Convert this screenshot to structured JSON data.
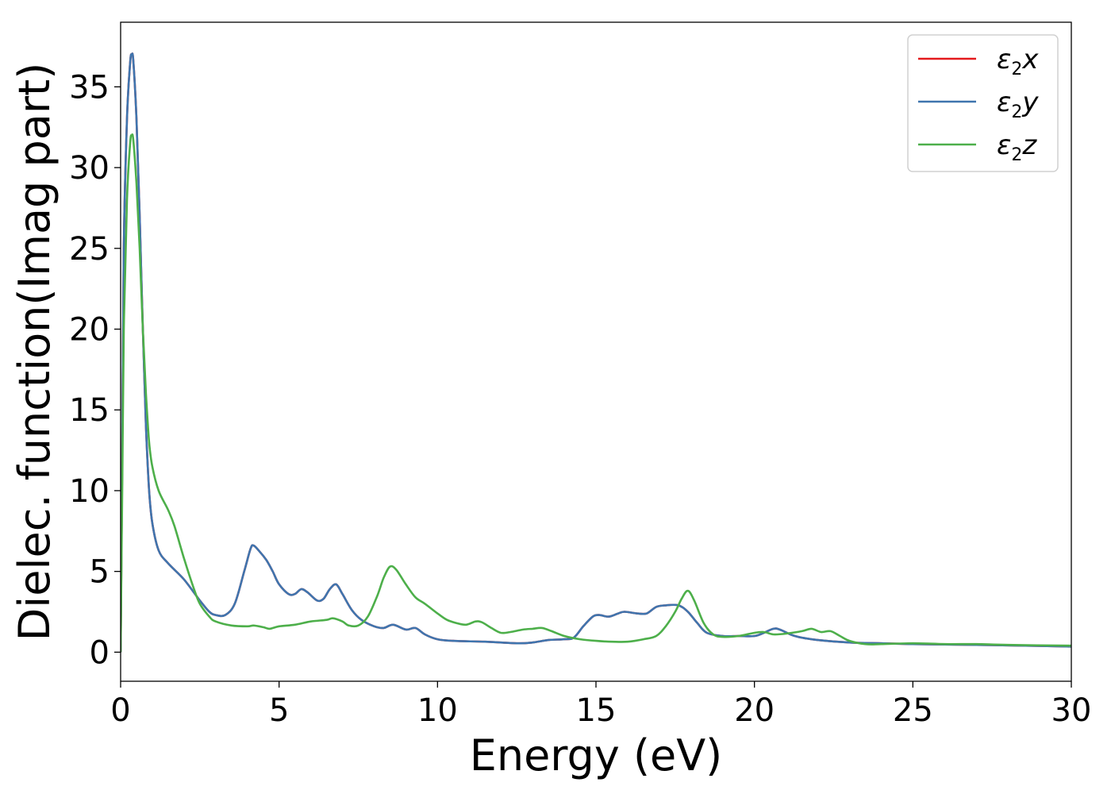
{
  "chart_data": {
    "type": "line",
    "xlabel": "Energy (eV)",
    "ylabel": "Dielec. function(Imag part)",
    "xlim": [
      0,
      30
    ],
    "ylim": [
      -1.8,
      39
    ],
    "xticks": [
      0,
      5,
      10,
      15,
      20,
      25,
      30
    ],
    "yticks": [
      0,
      5,
      10,
      15,
      20,
      25,
      30,
      35
    ],
    "grid": false,
    "legend_position": "top-right",
    "series": [
      {
        "name": "x",
        "legend_symbol": "ε",
        "legend_subscript": "2",
        "color": "#e41a1c",
        "points": [
          [
            0,
            0
          ],
          [
            0.05,
            12
          ],
          [
            0.1,
            25
          ],
          [
            0.2,
            33
          ],
          [
            0.3,
            36.5
          ],
          [
            0.35,
            37
          ],
          [
            0.4,
            36.6
          ],
          [
            0.5,
            33
          ],
          [
            0.6,
            27
          ],
          [
            0.7,
            20
          ],
          [
            0.8,
            14
          ],
          [
            0.9,
            10
          ],
          [
            1.0,
            8
          ],
          [
            1.2,
            6.3
          ],
          [
            1.5,
            5.5
          ],
          [
            2.0,
            4.5
          ],
          [
            2.5,
            3.2
          ],
          [
            2.8,
            2.5
          ],
          [
            3.0,
            2.3
          ],
          [
            3.3,
            2.3
          ],
          [
            3.6,
            3.0
          ],
          [
            3.9,
            5.0
          ],
          [
            4.1,
            6.4
          ],
          [
            4.2,
            6.6
          ],
          [
            4.4,
            6.2
          ],
          [
            4.6,
            5.7
          ],
          [
            4.8,
            5.0
          ],
          [
            5.0,
            4.2
          ],
          [
            5.3,
            3.6
          ],
          [
            5.5,
            3.6
          ],
          [
            5.7,
            3.9
          ],
          [
            5.9,
            3.7
          ],
          [
            6.2,
            3.2
          ],
          [
            6.4,
            3.3
          ],
          [
            6.6,
            3.9
          ],
          [
            6.8,
            4.2
          ],
          [
            7.0,
            3.6
          ],
          [
            7.3,
            2.6
          ],
          [
            7.6,
            2.0
          ],
          [
            8.0,
            1.6
          ],
          [
            8.3,
            1.5
          ],
          [
            8.6,
            1.7
          ],
          [
            9.0,
            1.4
          ],
          [
            9.3,
            1.5
          ],
          [
            9.6,
            1.1
          ],
          [
            10.0,
            0.8
          ],
          [
            10.5,
            0.7
          ],
          [
            11.5,
            0.65
          ],
          [
            12.5,
            0.55
          ],
          [
            13.0,
            0.6
          ],
          [
            13.5,
            0.75
          ],
          [
            14.0,
            0.8
          ],
          [
            14.3,
            0.9
          ],
          [
            14.6,
            1.6
          ],
          [
            14.9,
            2.2
          ],
          [
            15.1,
            2.3
          ],
          [
            15.4,
            2.2
          ],
          [
            15.7,
            2.4
          ],
          [
            15.9,
            2.5
          ],
          [
            16.3,
            2.4
          ],
          [
            16.6,
            2.4
          ],
          [
            16.9,
            2.8
          ],
          [
            17.2,
            2.9
          ],
          [
            17.6,
            2.9
          ],
          [
            17.9,
            2.5
          ],
          [
            18.2,
            1.8
          ],
          [
            18.5,
            1.2
          ],
          [
            19.0,
            1.0
          ],
          [
            19.5,
            1.0
          ],
          [
            20.0,
            1.0
          ],
          [
            20.3,
            1.2
          ],
          [
            20.6,
            1.45
          ],
          [
            20.8,
            1.4
          ],
          [
            21.2,
            1.05
          ],
          [
            21.5,
            0.9
          ],
          [
            22.0,
            0.75
          ],
          [
            23.0,
            0.6
          ],
          [
            24.0,
            0.55
          ],
          [
            25.0,
            0.5
          ],
          [
            27.0,
            0.45
          ],
          [
            28.0,
            0.42
          ],
          [
            30.0,
            0.35
          ]
        ]
      },
      {
        "name": "y",
        "legend_symbol": "ε",
        "legend_subscript": "2",
        "color": "#3f75ae",
        "points": [
          [
            0,
            0
          ],
          [
            0.05,
            12
          ],
          [
            0.1,
            25
          ],
          [
            0.2,
            33
          ],
          [
            0.3,
            36.5
          ],
          [
            0.35,
            37
          ],
          [
            0.4,
            36.6
          ],
          [
            0.5,
            33
          ],
          [
            0.6,
            27
          ],
          [
            0.7,
            20
          ],
          [
            0.8,
            14
          ],
          [
            0.9,
            10
          ],
          [
            1.0,
            8
          ],
          [
            1.2,
            6.3
          ],
          [
            1.5,
            5.5
          ],
          [
            2.0,
            4.5
          ],
          [
            2.5,
            3.2
          ],
          [
            2.8,
            2.5
          ],
          [
            3.0,
            2.3
          ],
          [
            3.3,
            2.3
          ],
          [
            3.6,
            3.0
          ],
          [
            3.9,
            5.0
          ],
          [
            4.1,
            6.4
          ],
          [
            4.2,
            6.6
          ],
          [
            4.4,
            6.2
          ],
          [
            4.6,
            5.7
          ],
          [
            4.8,
            5.0
          ],
          [
            5.0,
            4.2
          ],
          [
            5.3,
            3.6
          ],
          [
            5.5,
            3.6
          ],
          [
            5.7,
            3.9
          ],
          [
            5.9,
            3.7
          ],
          [
            6.2,
            3.2
          ],
          [
            6.4,
            3.3
          ],
          [
            6.6,
            3.9
          ],
          [
            6.8,
            4.2
          ],
          [
            7.0,
            3.6
          ],
          [
            7.3,
            2.6
          ],
          [
            7.6,
            2.0
          ],
          [
            8.0,
            1.6
          ],
          [
            8.3,
            1.5
          ],
          [
            8.6,
            1.7
          ],
          [
            9.0,
            1.4
          ],
          [
            9.3,
            1.5
          ],
          [
            9.6,
            1.1
          ],
          [
            10.0,
            0.8
          ],
          [
            10.5,
            0.7
          ],
          [
            11.5,
            0.65
          ],
          [
            12.5,
            0.55
          ],
          [
            13.0,
            0.6
          ],
          [
            13.5,
            0.75
          ],
          [
            14.0,
            0.8
          ],
          [
            14.3,
            0.9
          ],
          [
            14.6,
            1.6
          ],
          [
            14.9,
            2.2
          ],
          [
            15.1,
            2.3
          ],
          [
            15.4,
            2.2
          ],
          [
            15.7,
            2.4
          ],
          [
            15.9,
            2.5
          ],
          [
            16.3,
            2.4
          ],
          [
            16.6,
            2.4
          ],
          [
            16.9,
            2.8
          ],
          [
            17.2,
            2.9
          ],
          [
            17.6,
            2.9
          ],
          [
            17.9,
            2.5
          ],
          [
            18.2,
            1.8
          ],
          [
            18.5,
            1.2
          ],
          [
            19.0,
            1.0
          ],
          [
            19.5,
            1.0
          ],
          [
            20.0,
            1.0
          ],
          [
            20.3,
            1.2
          ],
          [
            20.6,
            1.45
          ],
          [
            20.8,
            1.4
          ],
          [
            21.2,
            1.05
          ],
          [
            21.5,
            0.9
          ],
          [
            22.0,
            0.75
          ],
          [
            23.0,
            0.6
          ],
          [
            24.0,
            0.55
          ],
          [
            25.0,
            0.5
          ],
          [
            27.0,
            0.45
          ],
          [
            28.0,
            0.42
          ],
          [
            30.0,
            0.35
          ]
        ]
      },
      {
        "name": "z",
        "legend_symbol": "ε",
        "legend_subscript": "2",
        "color": "#4daf4a",
        "points": [
          [
            0,
            0
          ],
          [
            0.05,
            10
          ],
          [
            0.1,
            20
          ],
          [
            0.2,
            28
          ],
          [
            0.3,
            31.5
          ],
          [
            0.35,
            32
          ],
          [
            0.4,
            31.7
          ],
          [
            0.5,
            29
          ],
          [
            0.6,
            25
          ],
          [
            0.7,
            20
          ],
          [
            0.8,
            16
          ],
          [
            0.9,
            13
          ],
          [
            1.0,
            11.5
          ],
          [
            1.2,
            10
          ],
          [
            1.5,
            8.8
          ],
          [
            1.7,
            7.8
          ],
          [
            2.0,
            5.8
          ],
          [
            2.3,
            4.0
          ],
          [
            2.5,
            3.0
          ],
          [
            2.8,
            2.2
          ],
          [
            3.0,
            1.9
          ],
          [
            3.5,
            1.65
          ],
          [
            4.0,
            1.6
          ],
          [
            4.2,
            1.65
          ],
          [
            4.5,
            1.55
          ],
          [
            4.7,
            1.45
          ],
          [
            5.0,
            1.6
          ],
          [
            5.5,
            1.7
          ],
          [
            6.0,
            1.9
          ],
          [
            6.5,
            2.0
          ],
          [
            6.7,
            2.1
          ],
          [
            7.0,
            1.9
          ],
          [
            7.2,
            1.65
          ],
          [
            7.5,
            1.65
          ],
          [
            7.8,
            2.2
          ],
          [
            8.1,
            3.5
          ],
          [
            8.3,
            4.6
          ],
          [
            8.5,
            5.3
          ],
          [
            8.7,
            5.1
          ],
          [
            9.0,
            4.2
          ],
          [
            9.3,
            3.4
          ],
          [
            9.6,
            3.0
          ],
          [
            10.0,
            2.4
          ],
          [
            10.3,
            2.0
          ],
          [
            10.6,
            1.8
          ],
          [
            10.9,
            1.7
          ],
          [
            11.2,
            1.9
          ],
          [
            11.4,
            1.85
          ],
          [
            11.7,
            1.5
          ],
          [
            12.0,
            1.2
          ],
          [
            12.3,
            1.25
          ],
          [
            12.7,
            1.4
          ],
          [
            13.0,
            1.45
          ],
          [
            13.3,
            1.5
          ],
          [
            13.6,
            1.3
          ],
          [
            14.0,
            1.0
          ],
          [
            14.5,
            0.8
          ],
          [
            15.0,
            0.7
          ],
          [
            15.5,
            0.65
          ],
          [
            16.0,
            0.65
          ],
          [
            16.5,
            0.8
          ],
          [
            16.9,
            1.0
          ],
          [
            17.2,
            1.6
          ],
          [
            17.5,
            2.5
          ],
          [
            17.7,
            3.3
          ],
          [
            17.9,
            3.8
          ],
          [
            18.1,
            3.2
          ],
          [
            18.4,
            1.8
          ],
          [
            18.7,
            1.1
          ],
          [
            19.0,
            0.95
          ],
          [
            19.5,
            1.0
          ],
          [
            20.0,
            1.2
          ],
          [
            20.3,
            1.25
          ],
          [
            20.6,
            1.1
          ],
          [
            21.0,
            1.15
          ],
          [
            21.5,
            1.3
          ],
          [
            21.8,
            1.45
          ],
          [
            22.1,
            1.25
          ],
          [
            22.4,
            1.3
          ],
          [
            22.7,
            1.0
          ],
          [
            23.0,
            0.7
          ],
          [
            23.5,
            0.5
          ],
          [
            24.0,
            0.5
          ],
          [
            25.0,
            0.55
          ],
          [
            26.0,
            0.5
          ],
          [
            27.0,
            0.5
          ],
          [
            28.0,
            0.45
          ],
          [
            30.0,
            0.4
          ]
        ]
      }
    ]
  }
}
